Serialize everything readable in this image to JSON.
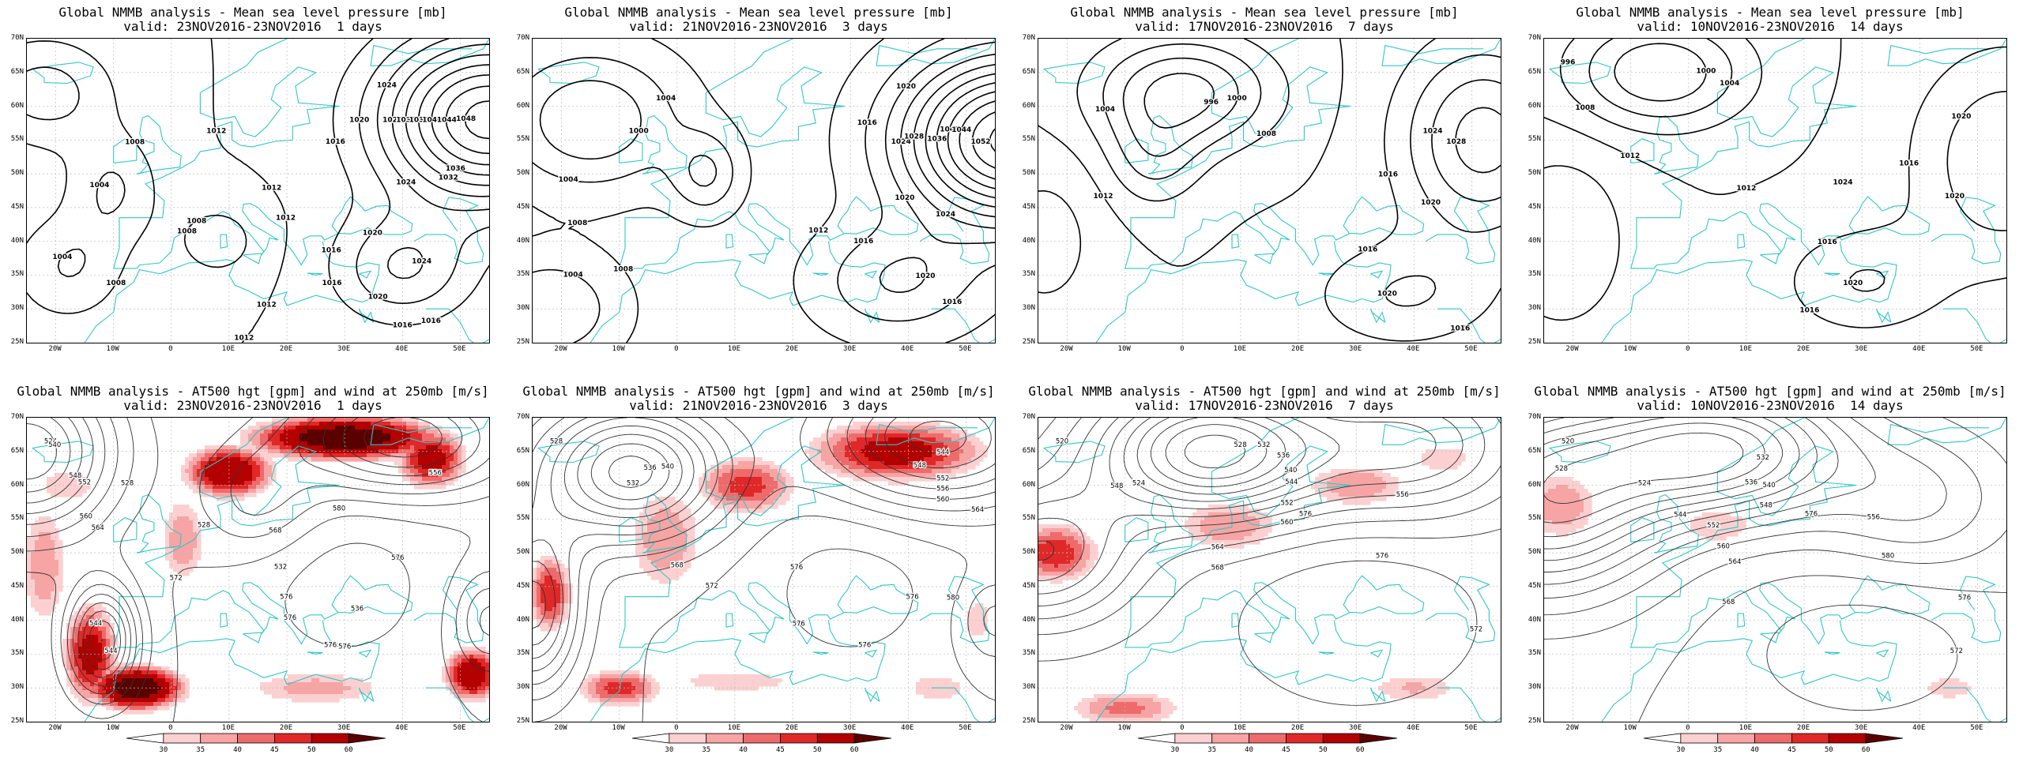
{
  "colors": {
    "coast": "#2ec8c8",
    "isobar": "#000000",
    "height_contour": "#333333",
    "grid": "#bbbbbb",
    "wind_shades": [
      "#ffffff",
      "#fcd0d0",
      "#f7a4a4",
      "#ee6b6b",
      "#e02828",
      "#b30000",
      "#5a0000"
    ]
  },
  "axes": {
    "lat_labels": [
      "70N",
      "65N",
      "60N",
      "55N",
      "50N",
      "45N",
      "40N",
      "35N",
      "30N",
      "25N"
    ],
    "lon_labels": [
      "20W",
      "10W",
      "0",
      "10E",
      "20E",
      "30E",
      "40E",
      "50E"
    ],
    "lat_range": [
      25,
      70
    ],
    "lon_range": [
      -25,
      55
    ]
  },
  "colorbar": {
    "ticks": [
      "30",
      "35",
      "40",
      "45",
      "50",
      "60"
    ]
  },
  "rows": [
    {
      "id": "mslp",
      "panels": [
        {
          "title": "Global NMMB analysis - Mean sea level pressure [mb]",
          "valid": "valid: 23NOV2016-23NOV2016  1 days",
          "labels": [
            "1008",
            "1004",
            "1012",
            "1016",
            "1008",
            "1012",
            "1016",
            "1020",
            "1024",
            "1028",
            "1032",
            "1036",
            "1040",
            "1044",
            "1048",
            "1012",
            "1016",
            "1032",
            "1036",
            "1024",
            "1016",
            "1008",
            "1004",
            "1012",
            "1008",
            "1016",
            "1020",
            "1024",
            "1020",
            "1012"
          ]
        },
        {
          "title": "Global NMMB analysis - Mean sea level pressure [mb]",
          "valid": "valid: 21NOV2016-23NOV2016  3 days",
          "labels": [
            "1004",
            "1008",
            "1004",
            "1020",
            "1024",
            "1036",
            "1040",
            "1044",
            "1052",
            "1000",
            "1004",
            "1016",
            "1028",
            "1016",
            "1020",
            "1024",
            "1020",
            "1008",
            "1012",
            "1016"
          ]
        },
        {
          "title": "Global NMMB analysis - Mean sea level pressure [mb]",
          "valid": "valid: 17NOV2016-23NOV2016  7 days",
          "labels": [
            "996",
            "1000",
            "1004",
            "1008",
            "1016",
            "1028",
            "1012",
            "1024",
            "1020",
            "1020",
            "1016",
            "1016"
          ]
        },
        {
          "title": "Global NMMB analysis - Mean sea level pressure [mb]",
          "valid": "valid: 10NOV2016-23NOV2016  14 days",
          "labels": [
            "996",
            "1000",
            "1004",
            "1012",
            "1016",
            "1008",
            "1012",
            "1016",
            "1020",
            "1024",
            "1020",
            "1020",
            "1016"
          ]
        }
      ]
    },
    {
      "id": "z500",
      "panels": [
        {
          "title": "Global NMMB analysis - AT500 hgt [gpm] and wind at 250mb [m/s]",
          "valid": "valid: 23NOV2016-23NOV2016  1 days",
          "labels": [
            "524",
            "528",
            "528",
            "532",
            "536",
            "540",
            "544",
            "548",
            "552",
            "556",
            "560",
            "564",
            "568",
            "572",
            "576",
            "544",
            "576",
            "576",
            "576",
            "576",
            "580"
          ]
        },
        {
          "title": "Global NMMB analysis - AT500 hgt [gpm] and wind at 250mb [m/s]",
          "valid": "valid: 21NOV2016-23NOV2016  3 days",
          "labels": [
            "528",
            "532",
            "536",
            "540",
            "544",
            "548",
            "552",
            "556",
            "560",
            "564",
            "568",
            "572",
            "576",
            "576",
            "576",
            "576",
            "580"
          ]
        },
        {
          "title": "Global NMMB analysis - AT500 hgt [gpm] and wind at 250mb [m/s]",
          "valid": "valid: 17NOV2016-23NOV2016  7 days",
          "labels": [
            "520",
            "524",
            "528",
            "532",
            "536",
            "540",
            "544",
            "548",
            "552",
            "556",
            "560",
            "564",
            "568",
            "572",
            "576",
            "576"
          ]
        },
        {
          "title": "Global NMMB analysis - AT500 hgt [gpm] and wind at 250mb [m/s]",
          "valid": "valid: 10NOV2016-23NOV2016  14 days",
          "labels": [
            "520",
            "524",
            "528",
            "532",
            "536",
            "540",
            "544",
            "548",
            "552",
            "556",
            "560",
            "564",
            "568",
            "572",
            "576",
            "580",
            "576"
          ]
        }
      ]
    }
  ]
}
